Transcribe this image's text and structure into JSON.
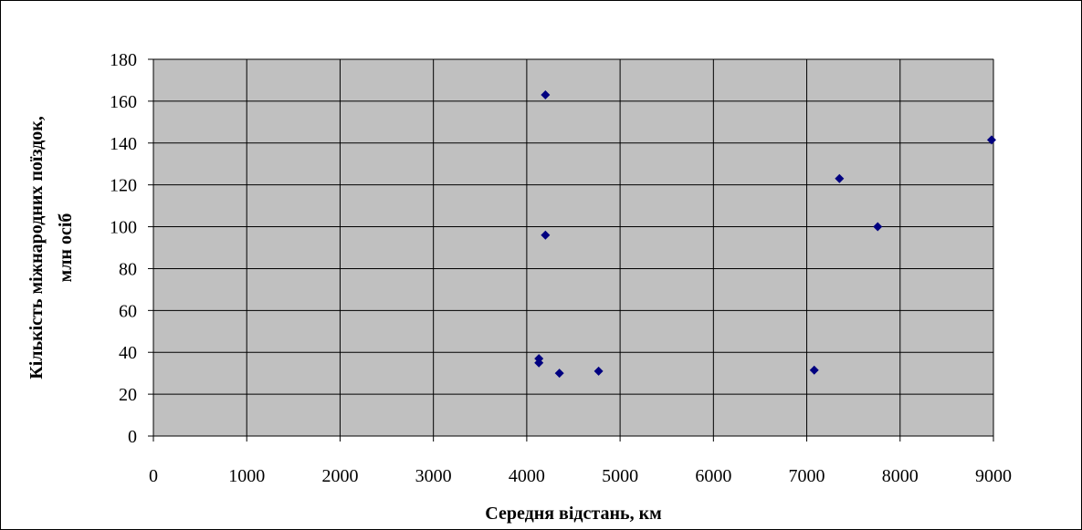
{
  "chart_data": {
    "type": "scatter",
    "title": "",
    "xlabel": "Середня відстань, км",
    "ylabel_lines": [
      "Кількість міжнародних поїздок,",
      "млн осіб"
    ],
    "xlim": [
      0,
      9000
    ],
    "ylim": [
      0,
      180
    ],
    "x_ticks": [
      "0",
      "1000",
      "2000",
      "3000",
      "4000",
      "5000",
      "6000",
      "7000",
      "8000",
      "9000"
    ],
    "y_ticks": [
      "0",
      "20",
      "40",
      "60",
      "80",
      "100",
      "120",
      "140",
      "160",
      "180"
    ],
    "grid": true,
    "legend": "none",
    "plot_background": "#C0C0C0",
    "marker_color": "#000080",
    "marker": "diamond",
    "series": [
      {
        "points": [
          {
            "x": 4200,
            "y": 163
          },
          {
            "x": 4200,
            "y": 96
          },
          {
            "x": 4130,
            "y": 37
          },
          {
            "x": 4130,
            "y": 35
          },
          {
            "x": 4350,
            "y": 30
          },
          {
            "x": 4770,
            "y": 31
          },
          {
            "x": 7080,
            "y": 31.5
          },
          {
            "x": 7350,
            "y": 123
          },
          {
            "x": 7760,
            "y": 100
          },
          {
            "x": 8980,
            "y": 141.5
          }
        ]
      }
    ]
  }
}
